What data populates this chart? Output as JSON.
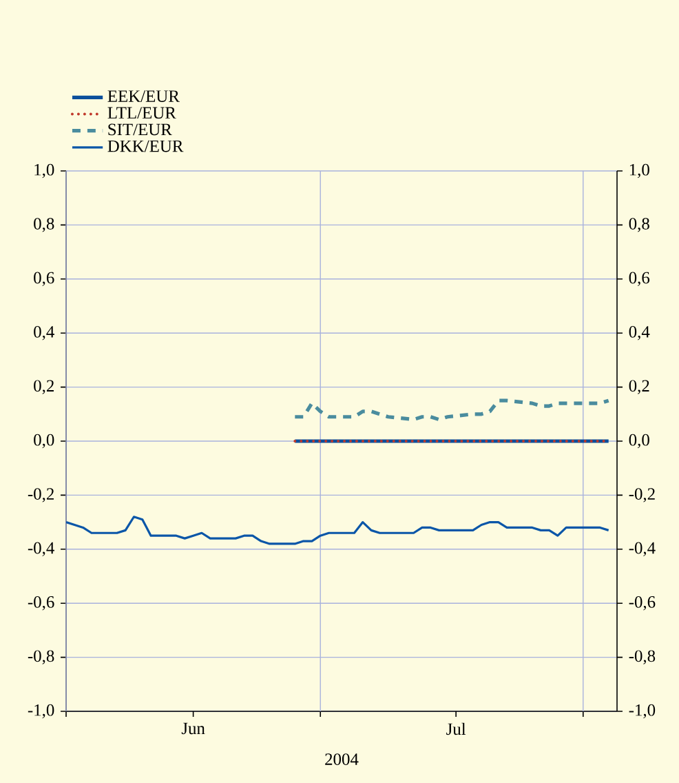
{
  "chart_data": {
    "type": "line",
    "xlabel": "2004",
    "legend": "top left",
    "grid": true,
    "xlim": [
      "2004-06-01",
      "2004-08-05"
    ],
    "xticks": [
      {
        "value": "2004-06-01",
        "label": null
      },
      {
        "value": "2004-06-16",
        "label": "Jun"
      },
      {
        "value": "2004-07-01",
        "label": null
      },
      {
        "value": "2004-07-17",
        "label": "Jul"
      },
      {
        "value": "2004-08-01",
        "label": null
      }
    ],
    "ylim": [
      -1.0,
      1.0
    ],
    "yticks": [
      {
        "value": -1.0,
        "label": "-1,0"
      },
      {
        "value": -0.8,
        "label": "-0,8"
      },
      {
        "value": -0.6,
        "label": "-0,6"
      },
      {
        "value": -0.4,
        "label": "-0,4"
      },
      {
        "value": -0.2,
        "label": "-0,2"
      },
      {
        "value": 0.0,
        "label": "0,0"
      },
      {
        "value": 0.2,
        "label": "0,2"
      },
      {
        "value": 0.4,
        "label": "0,4"
      },
      {
        "value": 0.6,
        "label": "0,6"
      },
      {
        "value": 0.8,
        "label": "0,8"
      },
      {
        "value": 1.0,
        "label": "1,0"
      }
    ],
    "y2lim": [
      -1.0,
      1.0
    ],
    "y2ticks": [
      {
        "value": -1.0,
        "label": "-1,0"
      },
      {
        "value": -0.8,
        "label": "-0,8"
      },
      {
        "value": -0.6,
        "label": "-0,6"
      },
      {
        "value": -0.4,
        "label": "-0,4"
      },
      {
        "value": -0.2,
        "label": "-0,2"
      },
      {
        "value": 0.0,
        "label": "0,0"
      },
      {
        "value": 0.2,
        "label": "0,2"
      },
      {
        "value": 0.4,
        "label": "0,4"
      },
      {
        "value": 0.6,
        "label": "0,6"
      },
      {
        "value": 0.8,
        "label": "0,8"
      },
      {
        "value": 1.0,
        "label": "1,0"
      }
    ],
    "series": [
      {
        "name": "EEK/EUR",
        "color": "#0b4f9c",
        "line_style": "solid",
        "x": [
          "2004-06-28",
          "2004-06-29",
          "2004-06-30",
          "2004-07-01",
          "2004-07-02",
          "2004-07-05",
          "2004-07-06",
          "2004-07-07",
          "2004-07-08",
          "2004-07-09",
          "2004-07-12",
          "2004-07-13",
          "2004-07-14",
          "2004-07-15",
          "2004-07-16",
          "2004-07-19",
          "2004-07-20",
          "2004-07-21",
          "2004-07-22",
          "2004-07-23",
          "2004-07-26",
          "2004-07-27",
          "2004-07-28",
          "2004-07-29",
          "2004-07-30",
          "2004-08-02",
          "2004-08-03",
          "2004-08-04"
        ],
        "values": [
          0,
          0,
          0,
          0,
          0,
          0,
          0,
          0,
          0,
          0,
          0,
          0,
          0,
          0,
          0,
          0,
          0,
          0,
          0,
          0,
          0,
          0,
          0,
          0,
          0,
          0,
          0,
          0
        ]
      },
      {
        "name": "LTL/EUR",
        "color": "#c0392b",
        "line_style": "dotted",
        "x": [
          "2004-06-28",
          "2004-06-29",
          "2004-06-30",
          "2004-07-01",
          "2004-07-02",
          "2004-07-05",
          "2004-07-06",
          "2004-07-07",
          "2004-07-08",
          "2004-07-09",
          "2004-07-12",
          "2004-07-13",
          "2004-07-14",
          "2004-07-15",
          "2004-07-16",
          "2004-07-19",
          "2004-07-20",
          "2004-07-21",
          "2004-07-22",
          "2004-07-23",
          "2004-07-26",
          "2004-07-27",
          "2004-07-28",
          "2004-07-29",
          "2004-07-30",
          "2004-08-02",
          "2004-08-03",
          "2004-08-04"
        ],
        "values": [
          0,
          0,
          0,
          0,
          0,
          0,
          0,
          0,
          0,
          0,
          0,
          0,
          0,
          0,
          0,
          0,
          0,
          0,
          0,
          0,
          0,
          0,
          0,
          0,
          0,
          0,
          0,
          0
        ]
      },
      {
        "name": "SIT/EUR",
        "color": "#4a8c9e",
        "line_style": "dashed",
        "x": [
          "2004-06-28",
          "2004-06-29",
          "2004-06-30",
          "2004-07-01",
          "2004-07-02",
          "2004-07-05",
          "2004-07-06",
          "2004-07-07",
          "2004-07-08",
          "2004-07-09",
          "2004-07-12",
          "2004-07-13",
          "2004-07-14",
          "2004-07-15",
          "2004-07-16",
          "2004-07-19",
          "2004-07-20",
          "2004-07-21",
          "2004-07-22",
          "2004-07-23",
          "2004-07-26",
          "2004-07-27",
          "2004-07-28",
          "2004-07-29",
          "2004-07-30",
          "2004-08-02",
          "2004-08-03",
          "2004-08-04"
        ],
        "values": [
          0.09,
          0.09,
          0.14,
          0.11,
          0.09,
          0.09,
          0.11,
          0.11,
          0.1,
          0.09,
          0.08,
          0.09,
          0.09,
          0.08,
          0.09,
          0.1,
          0.1,
          0.11,
          0.15,
          0.15,
          0.14,
          0.13,
          0.13,
          0.14,
          0.14,
          0.14,
          0.14,
          0.15
        ]
      },
      {
        "name": "DKK/EUR",
        "color": "#0b56a8",
        "line_style": "solid",
        "x": [
          "2004-06-01",
          "2004-06-02",
          "2004-06-03",
          "2004-06-04",
          "2004-06-07",
          "2004-06-08",
          "2004-06-09",
          "2004-06-10",
          "2004-06-11",
          "2004-06-14",
          "2004-06-15",
          "2004-06-16",
          "2004-06-17",
          "2004-06-18",
          "2004-06-21",
          "2004-06-22",
          "2004-06-23",
          "2004-06-24",
          "2004-06-25",
          "2004-06-28",
          "2004-06-29",
          "2004-06-30",
          "2004-07-01",
          "2004-07-02",
          "2004-07-05",
          "2004-07-06",
          "2004-07-07",
          "2004-07-08",
          "2004-07-09",
          "2004-07-12",
          "2004-07-13",
          "2004-07-14",
          "2004-07-15",
          "2004-07-16",
          "2004-07-19",
          "2004-07-20",
          "2004-07-21",
          "2004-07-22",
          "2004-07-23",
          "2004-07-26",
          "2004-07-27",
          "2004-07-28",
          "2004-07-29",
          "2004-07-30",
          "2004-08-02",
          "2004-08-03",
          "2004-08-04"
        ],
        "values": [
          -0.3,
          -0.31,
          -0.32,
          -0.34,
          -0.34,
          -0.33,
          -0.28,
          -0.29,
          -0.35,
          -0.35,
          -0.36,
          -0.35,
          -0.34,
          -0.36,
          -0.36,
          -0.35,
          -0.35,
          -0.37,
          -0.38,
          -0.38,
          -0.37,
          -0.37,
          -0.35,
          -0.34,
          -0.34,
          -0.3,
          -0.33,
          -0.34,
          -0.34,
          -0.34,
          -0.32,
          -0.32,
          -0.33,
          -0.33,
          -0.33,
          -0.31,
          -0.3,
          -0.3,
          -0.32,
          -0.32,
          -0.33,
          -0.33,
          -0.35,
          -0.32,
          -0.32,
          -0.32,
          -0.33
        ]
      }
    ]
  }
}
